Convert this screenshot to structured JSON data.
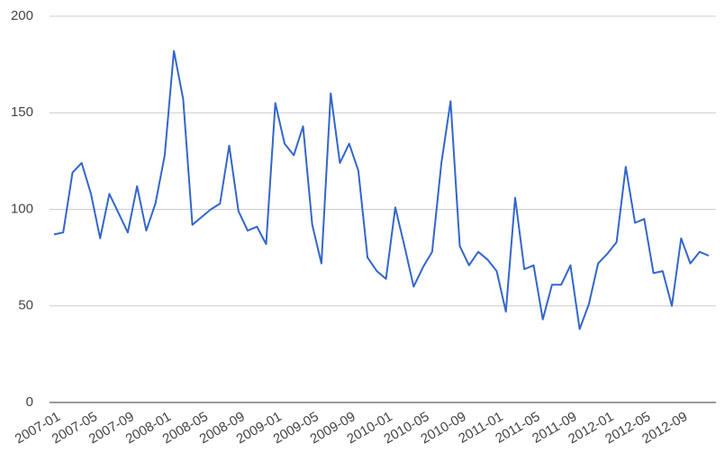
{
  "chart_data": {
    "type": "line",
    "categories": [
      "2007-01",
      null,
      null,
      null,
      "2007-05",
      null,
      null,
      null,
      "2007-09",
      null,
      null,
      null,
      "2008-01",
      null,
      null,
      null,
      "2008-05",
      null,
      null,
      null,
      "2008-09",
      null,
      null,
      null,
      "2009-01",
      null,
      null,
      null,
      "2009-05",
      null,
      null,
      null,
      "2009-09",
      null,
      null,
      null,
      "2010-01",
      null,
      null,
      null,
      "2010-05",
      null,
      null,
      null,
      "2010-09",
      null,
      null,
      null,
      "2011-01",
      null,
      null,
      null,
      "2011-05",
      null,
      null,
      null,
      "2011-09",
      null,
      null,
      null,
      "2012-01",
      null,
      null,
      null,
      "2012-05",
      null,
      null,
      null,
      "2012-09",
      null,
      null,
      null
    ],
    "values": [
      87,
      88,
      119,
      124,
      108,
      85,
      108,
      98,
      88,
      112,
      89,
      103,
      128,
      182,
      157,
      92,
      96,
      100,
      103,
      133,
      99,
      89,
      91,
      82,
      155,
      134,
      128,
      143,
      92,
      72,
      160,
      124,
      134,
      120,
      75,
      68,
      64,
      101,
      81,
      60,
      70,
      78,
      124,
      156,
      81,
      71,
      78,
      74,
      68,
      47,
      106,
      69,
      71,
      43,
      61,
      61,
      71,
      38,
      51,
      72,
      77,
      83,
      122,
      93,
      95,
      67,
      68,
      50,
      85,
      72,
      78,
      76
    ],
    "color": "#3366cc",
    "ylim": [
      0,
      200
    ],
    "yticks": [
      0,
      50,
      100,
      150,
      200
    ],
    "grid": true
  }
}
